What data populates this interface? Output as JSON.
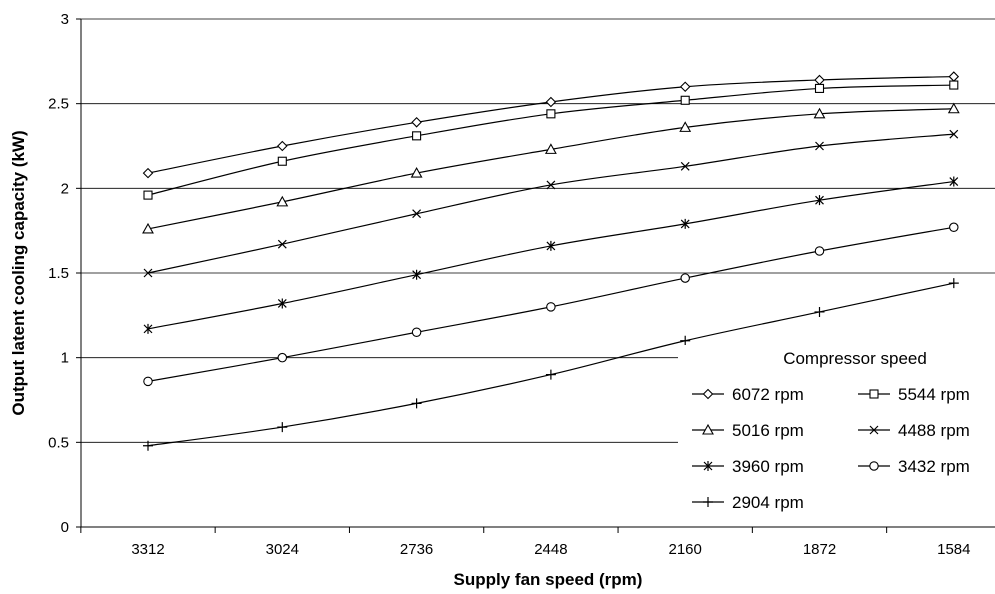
{
  "chart_data": {
    "type": "line",
    "xlabel": "Supply fan speed (rpm)",
    "ylabel": "Output latent cooling capacity (kW)",
    "categories": [
      "3312",
      "3024",
      "2736",
      "2448",
      "2160",
      "1872",
      "1584"
    ],
    "ylim": [
      0,
      3
    ],
    "yticks": [
      "0",
      "0.5",
      "1",
      "1.5",
      "2",
      "2.5",
      "3"
    ],
    "grid": "horizontal",
    "legend_title": "Compressor speed",
    "legend_position": "bottom-right",
    "series": [
      {
        "name": "6072 rpm",
        "marker": "diamond",
        "values": [
          2.09,
          2.25,
          2.39,
          2.51,
          2.6,
          2.64,
          2.66
        ]
      },
      {
        "name": "5544 rpm",
        "marker": "square",
        "values": [
          1.96,
          2.16,
          2.31,
          2.44,
          2.52,
          2.59,
          2.61
        ]
      },
      {
        "name": "5016 rpm",
        "marker": "triangle",
        "values": [
          1.76,
          1.92,
          2.09,
          2.23,
          2.36,
          2.44,
          2.47
        ]
      },
      {
        "name": "4488 rpm",
        "marker": "x",
        "values": [
          1.5,
          1.67,
          1.85,
          2.02,
          2.13,
          2.25,
          2.32
        ]
      },
      {
        "name": "3960 rpm",
        "marker": "star",
        "values": [
          1.17,
          1.32,
          1.49,
          1.66,
          1.79,
          1.93,
          2.04
        ]
      },
      {
        "name": "3432 rpm",
        "marker": "circle",
        "values": [
          0.86,
          1.0,
          1.15,
          1.3,
          1.47,
          1.63,
          1.77
        ]
      },
      {
        "name": "2904 rpm",
        "marker": "plus",
        "values": [
          0.48,
          0.59,
          0.73,
          0.9,
          1.1,
          1.27,
          1.44
        ]
      }
    ]
  }
}
